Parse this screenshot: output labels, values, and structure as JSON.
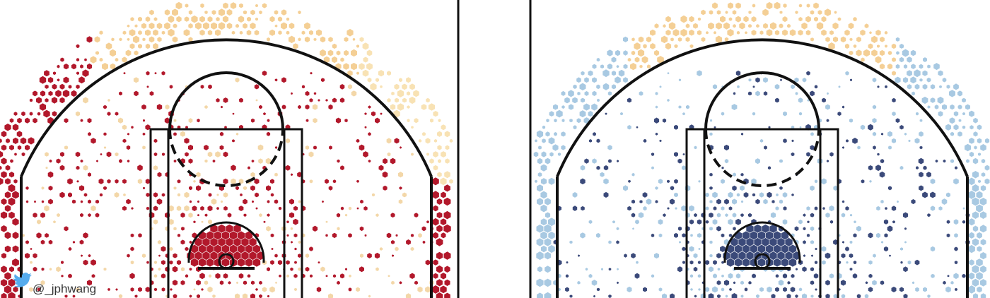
{
  "credit": "@_jphwang"
}
